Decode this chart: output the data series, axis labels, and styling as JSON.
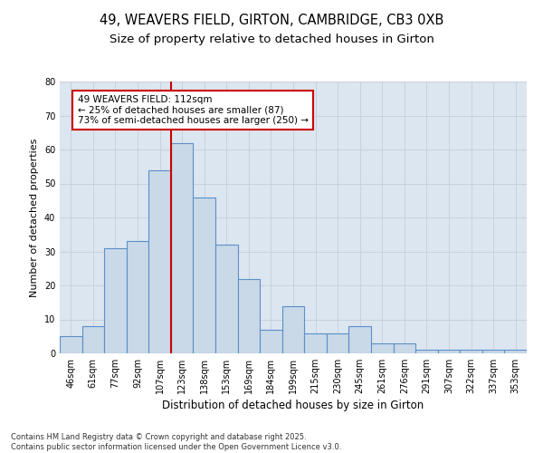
{
  "title1": "49, WEAVERS FIELD, GIRTON, CAMBRIDGE, CB3 0XB",
  "title2": "Size of property relative to detached houses in Girton",
  "xlabel": "Distribution of detached houses by size in Girton",
  "ylabel": "Number of detached properties",
  "categories": [
    "46sqm",
    "61sqm",
    "77sqm",
    "92sqm",
    "107sqm",
    "123sqm",
    "138sqm",
    "153sqm",
    "169sqm",
    "184sqm",
    "199sqm",
    "215sqm",
    "230sqm",
    "245sqm",
    "261sqm",
    "276sqm",
    "291sqm",
    "307sqm",
    "322sqm",
    "337sqm",
    "353sqm"
  ],
  "values": [
    5,
    8,
    31,
    33,
    54,
    62,
    46,
    32,
    22,
    7,
    14,
    6,
    6,
    8,
    3,
    3,
    1,
    1,
    1,
    1,
    1
  ],
  "bar_color": "#c9d9e8",
  "bar_edge_color": "#5b8fc9",
  "vline_x": 4.5,
  "vline_color": "#cc0000",
  "annotation_text": "49 WEAVERS FIELD: 112sqm\n← 25% of detached houses are smaller (87)\n73% of semi-detached houses are larger (250) →",
  "annotation_box_color": "#ffffff",
  "annotation_box_edge": "#cc0000",
  "ylim": [
    0,
    80
  ],
  "yticks": [
    0,
    10,
    20,
    30,
    40,
    50,
    60,
    70,
    80
  ],
  "grid_color": "#c8d0dc",
  "bg_color": "#dce6f0",
  "fig_bg_color": "#ffffff",
  "footnote": "Contains HM Land Registry data © Crown copyright and database right 2025.\nContains public sector information licensed under the Open Government Licence v3.0.",
  "title1_fontsize": 10.5,
  "title2_fontsize": 9.5,
  "xlabel_fontsize": 8.5,
  "ylabel_fontsize": 8,
  "tick_fontsize": 7,
  "footnote_fontsize": 6,
  "ann_fontsize": 7.5
}
